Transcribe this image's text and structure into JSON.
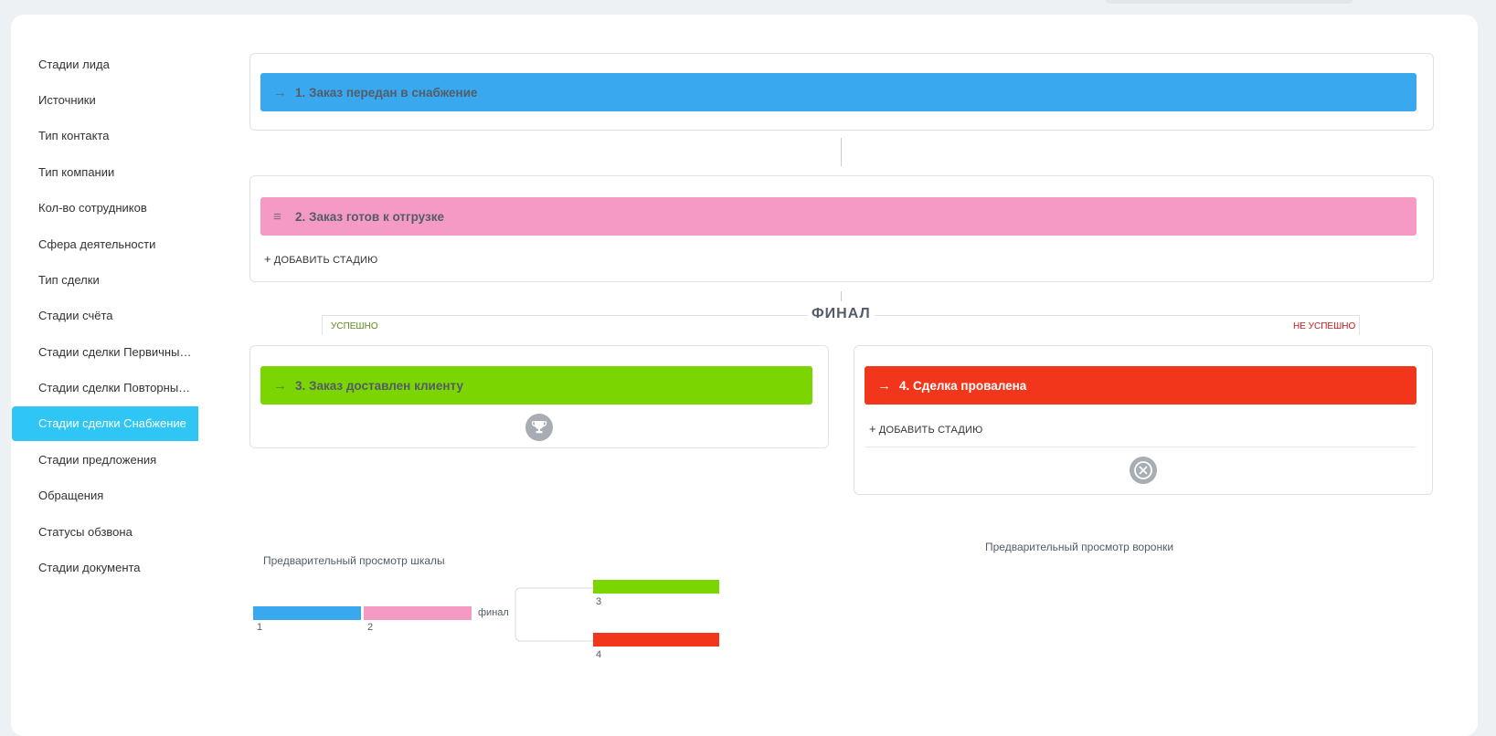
{
  "sidebar": {
    "items": [
      {
        "label": "Стадии лида"
      },
      {
        "label": "Источники"
      },
      {
        "label": "Тип контакта"
      },
      {
        "label": "Тип компании"
      },
      {
        "label": "Кол-во сотрудников"
      },
      {
        "label": "Сфера деятельности"
      },
      {
        "label": "Тип сделки"
      },
      {
        "label": "Стадии счёта"
      },
      {
        "label": "Стадии сделки Первичные ..."
      },
      {
        "label": "Стадии сделки Повторные ..."
      },
      {
        "label": "Стадии сделки Снабжение",
        "active": true
      },
      {
        "label": "Стадии предложения"
      },
      {
        "label": "Обращения"
      },
      {
        "label": "Статусы обзвона"
      },
      {
        "label": "Стадии документа"
      }
    ]
  },
  "stages": {
    "s1": {
      "label": "1. Заказ передан в снабжение",
      "glyph": "→",
      "color": "#39a8ef"
    },
    "s2": {
      "label": "2. Заказ готов к отгрузке",
      "glyph": "≡",
      "color": "#f59ac4"
    },
    "s3": {
      "label": "3. Заказ доставлен клиенту",
      "glyph": "→",
      "color": "#7bd500"
    },
    "s4": {
      "label": "4. Сделка провалена",
      "glyph": "→",
      "color": "#f1361b"
    }
  },
  "add_stage_label": "ДОБАВИТЬ СТАДИЮ",
  "final": {
    "title": "ФИНАЛ",
    "success_label": "УСПЕШНО",
    "fail_label": "НЕ УСПЕШНО",
    "success_icon": "trophy-icon",
    "fail_icon": "cancel-circle-icon"
  },
  "preview": {
    "scale_label": "Предварительный просмотр шкалы",
    "funnel_label": "Предварительный просмотр воронки",
    "final_word": "финал",
    "nums": [
      "1",
      "2",
      "3",
      "4"
    ]
  }
}
